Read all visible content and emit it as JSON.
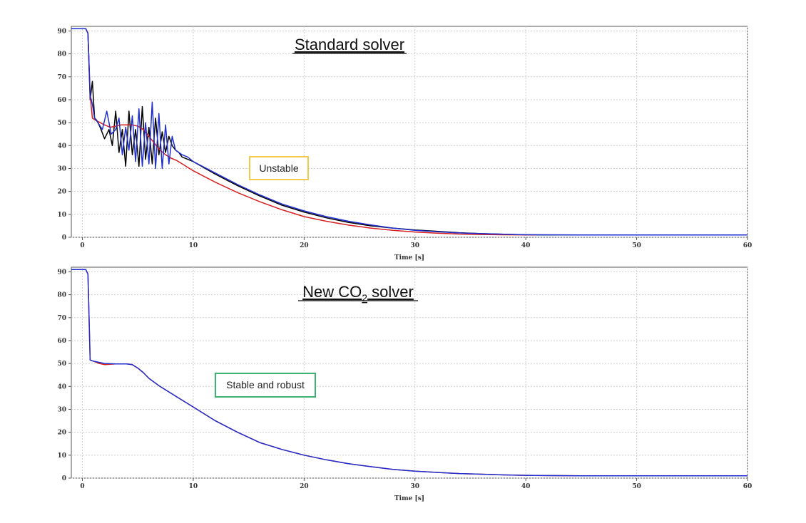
{
  "chart_data": [
    {
      "type": "line",
      "title": "Standard solver",
      "xlabel": "Time [s]",
      "ylabel": "",
      "xlim": [
        -1,
        60
      ],
      "ylim": [
        0,
        92
      ],
      "xticks": [
        0,
        10,
        20,
        30,
        40,
        50,
        60
      ],
      "yticks": [
        0,
        10,
        20,
        30,
        40,
        50,
        60,
        70,
        80,
        90
      ],
      "grid": true,
      "annotation": {
        "text": "Unstable",
        "color": "#f2c94c"
      },
      "series": [
        {
          "color": "#000000",
          "x": [
            -1,
            0.3,
            0.5,
            0.7,
            0.9,
            1.1,
            1.3,
            1.6,
            2.0,
            2.4,
            2.7,
            3.0,
            3.3,
            3.6,
            3.9,
            4.2,
            4.5,
            4.8,
            5.1,
            5.4,
            5.7,
            6.0,
            6.3,
            6.6,
            6.9,
            7.2,
            7.5,
            7.8,
            8.1,
            8.4,
            8.7,
            9.0,
            9.5,
            10,
            12,
            14,
            16,
            18,
            20,
            22,
            24,
            26,
            28,
            30,
            32,
            34,
            36,
            38,
            40,
            45,
            50,
            55,
            60
          ],
          "y": [
            91,
            91,
            89,
            60,
            68,
            52,
            51,
            48,
            43,
            47,
            40,
            55,
            37,
            47,
            31,
            55,
            36,
            47,
            31,
            57,
            34,
            48,
            32,
            52,
            36,
            46,
            37,
            44,
            40,
            38,
            37,
            35,
            34,
            33,
            27.5,
            22.5,
            18,
            14,
            11,
            8.5,
            6.5,
            5,
            4,
            3.2,
            2.6,
            2,
            1.6,
            1.3,
            1.1,
            1,
            1,
            1,
            1
          ]
        },
        {
          "color": "#d62020",
          "x": [
            -1,
            0.3,
            0.5,
            0.7,
            0.9,
            1.2,
            1.6,
            2.0,
            2.5,
            3.0,
            3.5,
            4.0,
            4.5,
            5.0,
            5.5,
            6.0,
            6.5,
            7.0,
            7.5,
            8.0,
            8.5,
            9.0,
            10,
            12,
            14,
            16,
            18,
            20,
            22,
            24,
            26,
            28,
            30,
            32,
            34,
            36,
            38,
            41
          ],
          "y": [
            91,
            91,
            89,
            62,
            52,
            51,
            50,
            49,
            48,
            48.5,
            49,
            49,
            49,
            48.5,
            47,
            44,
            41,
            38,
            36,
            34.5,
            33.5,
            32,
            29,
            24,
            19.5,
            15.5,
            12,
            9,
            7,
            5.3,
            4,
            3,
            2.3,
            1.8,
            1.4,
            1.2,
            1.1,
            1
          ]
        },
        {
          "color": "#1f2fd0",
          "x": [
            -1,
            0.3,
            0.5,
            0.7,
            0.9,
            1.1,
            1.4,
            1.8,
            2.2,
            2.6,
            3.0,
            3.3,
            3.6,
            3.9,
            4.2,
            4.5,
            4.8,
            5.1,
            5.4,
            5.7,
            6.0,
            6.3,
            6.6,
            6.9,
            7.2,
            7.5,
            7.8,
            8.1,
            8.4,
            8.7,
            9.0,
            9.5,
            10,
            12,
            14,
            16,
            18,
            20,
            22,
            24,
            26,
            28,
            30,
            32,
            34,
            36,
            38,
            40,
            45,
            50,
            55,
            60
          ],
          "y": [
            91,
            91,
            89,
            62,
            58,
            52,
            50,
            47,
            55,
            45,
            47,
            52,
            36,
            48,
            38,
            53,
            33,
            56,
            31,
            50,
            32,
            59,
            30,
            54,
            30,
            49,
            32,
            44,
            38,
            37,
            36,
            35,
            33,
            28,
            23,
            18.5,
            14.5,
            11.5,
            9,
            7,
            5.4,
            4,
            3,
            2.4,
            1.9,
            1.6,
            1.3,
            1.1,
            1,
            1,
            1,
            1
          ]
        }
      ]
    },
    {
      "type": "line",
      "title": "New CO₂ solver",
      "xlabel": "Time [s]",
      "ylabel": "",
      "xlim": [
        -1,
        60
      ],
      "ylim": [
        0,
        92
      ],
      "xticks": [
        0,
        10,
        20,
        30,
        40,
        50,
        60
      ],
      "yticks": [
        0,
        10,
        20,
        30,
        40,
        50,
        60,
        70,
        80,
        90
      ],
      "grid": true,
      "annotation": {
        "text": "Stable and robust",
        "color": "#3cb371"
      },
      "series": [
        {
          "color": "#d62020",
          "x": [
            -1,
            0.3,
            0.5,
            0.7,
            1.0,
            1.5,
            2.0,
            3.0,
            4.0,
            4.5,
            5.0,
            5.5,
            6.0,
            7,
            8,
            9,
            10,
            12,
            14,
            16,
            18,
            20,
            22,
            24,
            26,
            28,
            30,
            32,
            34,
            36,
            38,
            40,
            45,
            50,
            55,
            60
          ],
          "y": [
            91,
            91,
            89,
            51.5,
            51,
            50,
            49.5,
            49.8,
            49.8,
            49.5,
            48,
            46,
            43.5,
            40,
            37,
            34,
            31,
            25,
            20,
            15.5,
            12.5,
            10,
            8,
            6.3,
            5,
            3.8,
            3,
            2.5,
            2,
            1.7,
            1.4,
            1.2,
            1,
            1,
            1,
            1
          ]
        },
        {
          "color": "#1f2fd0",
          "x": [
            -1,
            0.3,
            0.5,
            0.7,
            1.0,
            1.5,
            2.0,
            3.0,
            4.0,
            4.5,
            5.0,
            5.5,
            6.0,
            7,
            8,
            9,
            10,
            12,
            14,
            16,
            18,
            20,
            22,
            24,
            26,
            28,
            30,
            32,
            34,
            36,
            38,
            40,
            45,
            50,
            55,
            60
          ],
          "y": [
            91,
            91,
            89,
            51.5,
            51,
            50.5,
            50,
            49.8,
            49.8,
            49.5,
            48,
            46,
            43.5,
            40,
            37,
            34,
            31,
            25,
            20,
            15.5,
            12.5,
            10,
            8,
            6.3,
            5,
            3.8,
            3,
            2.5,
            2,
            1.7,
            1.4,
            1.2,
            1,
            1,
            1,
            1
          ]
        }
      ]
    }
  ]
}
